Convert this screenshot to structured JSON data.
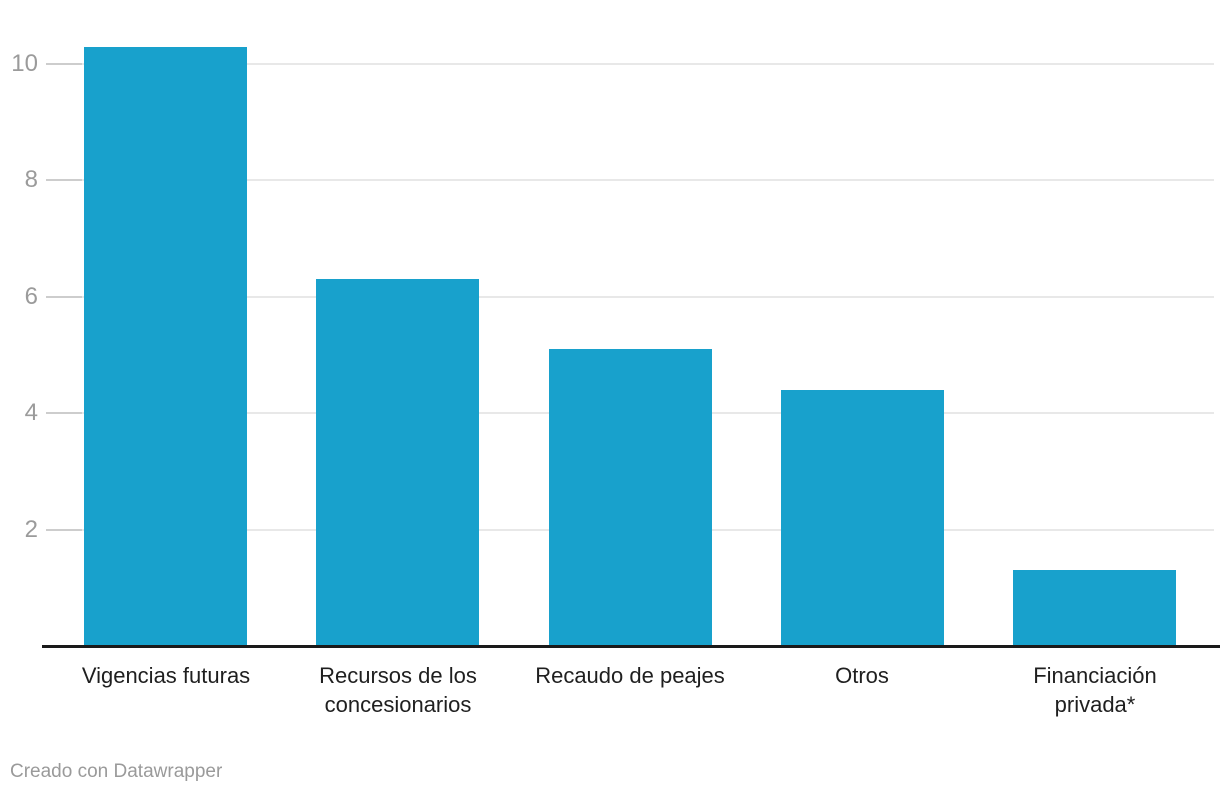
{
  "chart_data": {
    "type": "bar",
    "categories": [
      "Vigencias futuras",
      "Recursos de los concesionarios",
      "Recaudo de peajes",
      "Otros",
      "Financiación privada*"
    ],
    "category_lines": [
      [
        "Vigencias futuras"
      ],
      [
        "Recursos de los",
        "concesionarios"
      ],
      [
        "Recaudo de peajes"
      ],
      [
        "Otros"
      ],
      [
        "Financiación",
        "privada*"
      ]
    ],
    "values": [
      10.3,
      6.3,
      5.1,
      4.4,
      1.3
    ],
    "title": "",
    "xlabel": "",
    "ylabel": "",
    "ylim": [
      0,
      11.2
    ],
    "yticks": [
      2,
      4,
      6,
      8,
      10
    ],
    "grid": true,
    "legend": "none",
    "bar_color": "#18a1cc"
  },
  "colors": {
    "bar": "#18a1cc",
    "gridline": "#e8e8e8",
    "tick": "#cdcdcd",
    "axis_line": "#1a1a1a",
    "ytick_text": "#9b9b9b",
    "xlabel_text": "#1f1f1f",
    "footer_text": "#9a9a9a",
    "background": "#ffffff"
  },
  "footer": {
    "credit": "Creado con Datawrapper"
  }
}
